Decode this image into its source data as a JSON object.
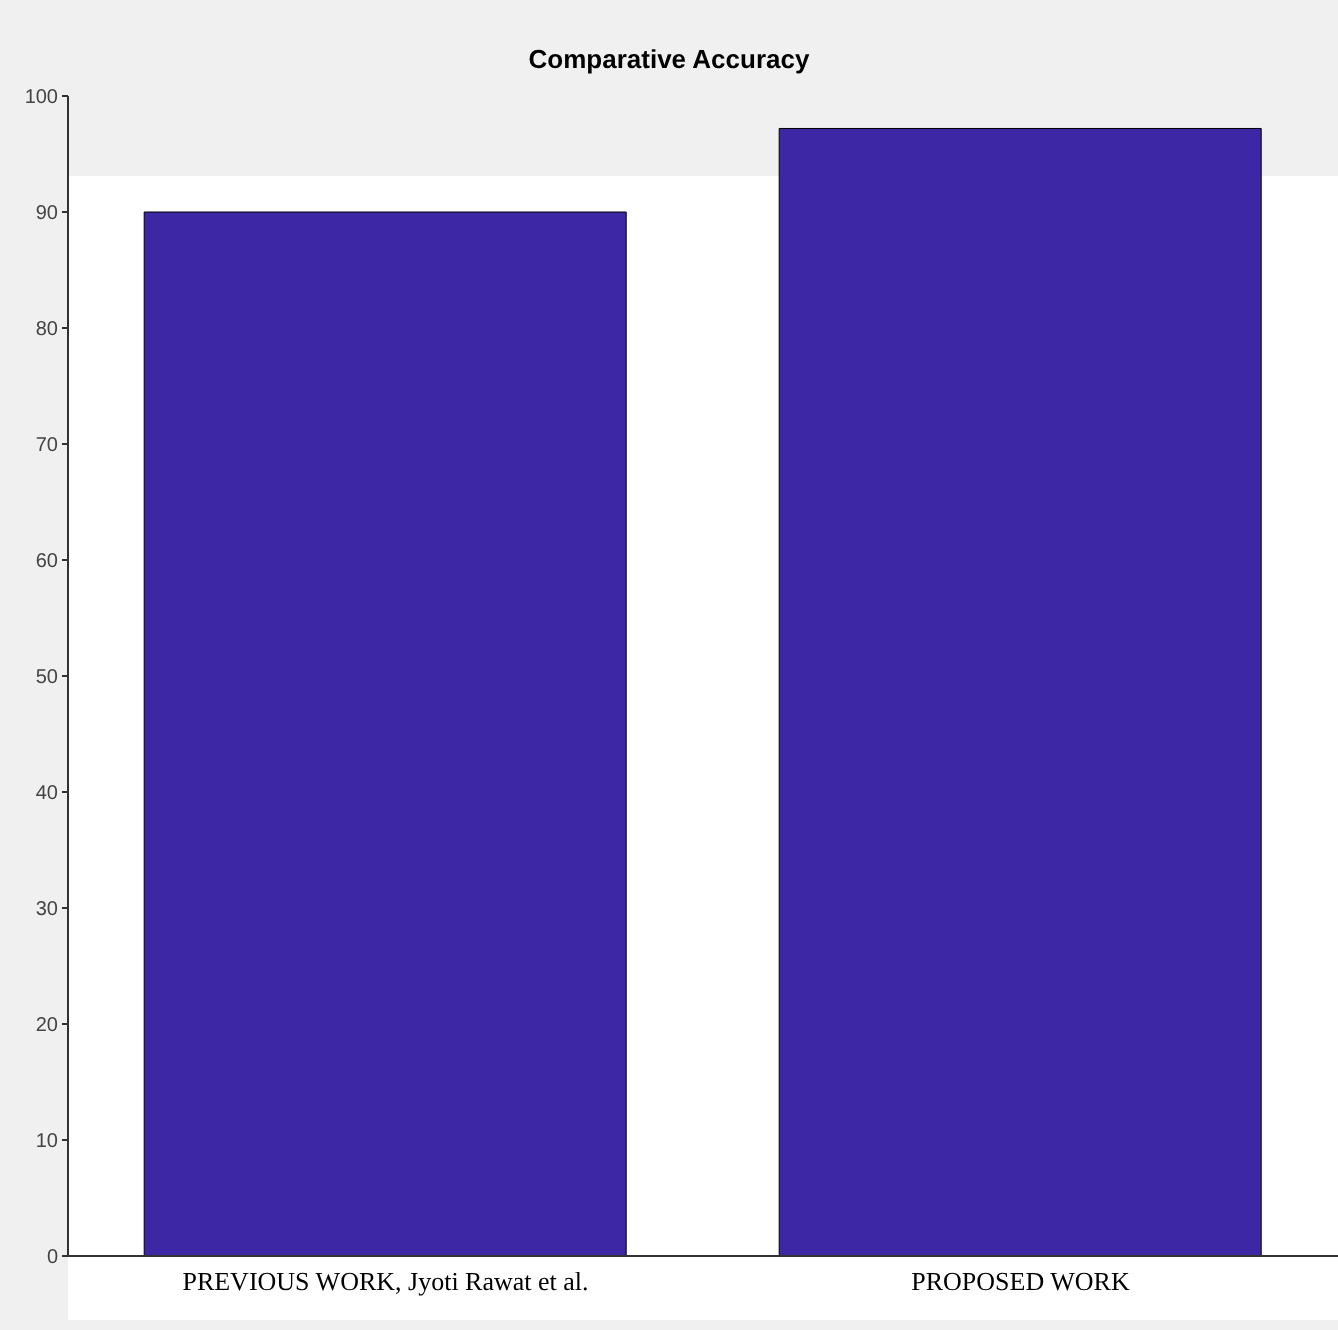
{
  "chart_data": {
    "type": "bar",
    "title": "Comparative Accuracy",
    "categories": [
      "PREVIOUS WORK, Jyoti Rawat et al.",
      "PROPOSED WORK"
    ],
    "values": [
      90,
      97.2
    ],
    "color": "#3d27a5",
    "ylim": [
      0,
      100
    ],
    "yticks": [
      0,
      10,
      20,
      30,
      40,
      50,
      60,
      70,
      80,
      90,
      100
    ],
    "grid": false
  }
}
